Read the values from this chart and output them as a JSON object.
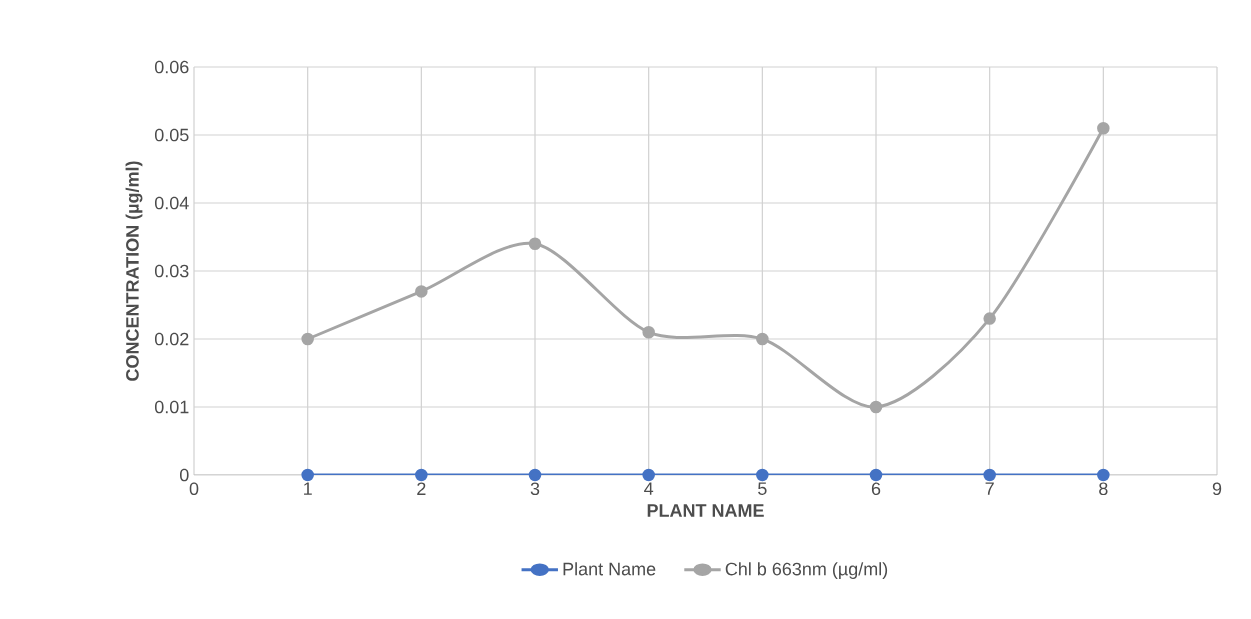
{
  "chart_data": {
    "type": "line",
    "xlabel": "PLANT NAME",
    "ylabel": "CONCENTRATION (µg/ml)",
    "x": [
      1,
      2,
      3,
      4,
      5,
      6,
      7,
      8
    ],
    "series": [
      {
        "name": "Plant Name",
        "color": "#4472c4",
        "values": [
          0,
          0,
          0,
          0,
          0,
          0,
          0,
          0
        ]
      },
      {
        "name": "Chl b 663nm (µg/ml)",
        "color": "#a5a5a5",
        "values": [
          0.02,
          0.027,
          0.034,
          0.021,
          0.02,
          0.01,
          0.023,
          0.051
        ]
      }
    ],
    "xlim": [
      0,
      9
    ],
    "xticks": [
      0,
      1,
      2,
      3,
      4,
      5,
      6,
      7,
      8,
      9
    ],
    "ylim": [
      0,
      0.06
    ],
    "yticks": [
      0,
      0.01,
      0.02,
      0.03,
      0.04,
      0.05,
      0.06
    ],
    "grid": true,
    "legend": "bottom",
    "marker": "circle",
    "line_style": "solid"
  }
}
